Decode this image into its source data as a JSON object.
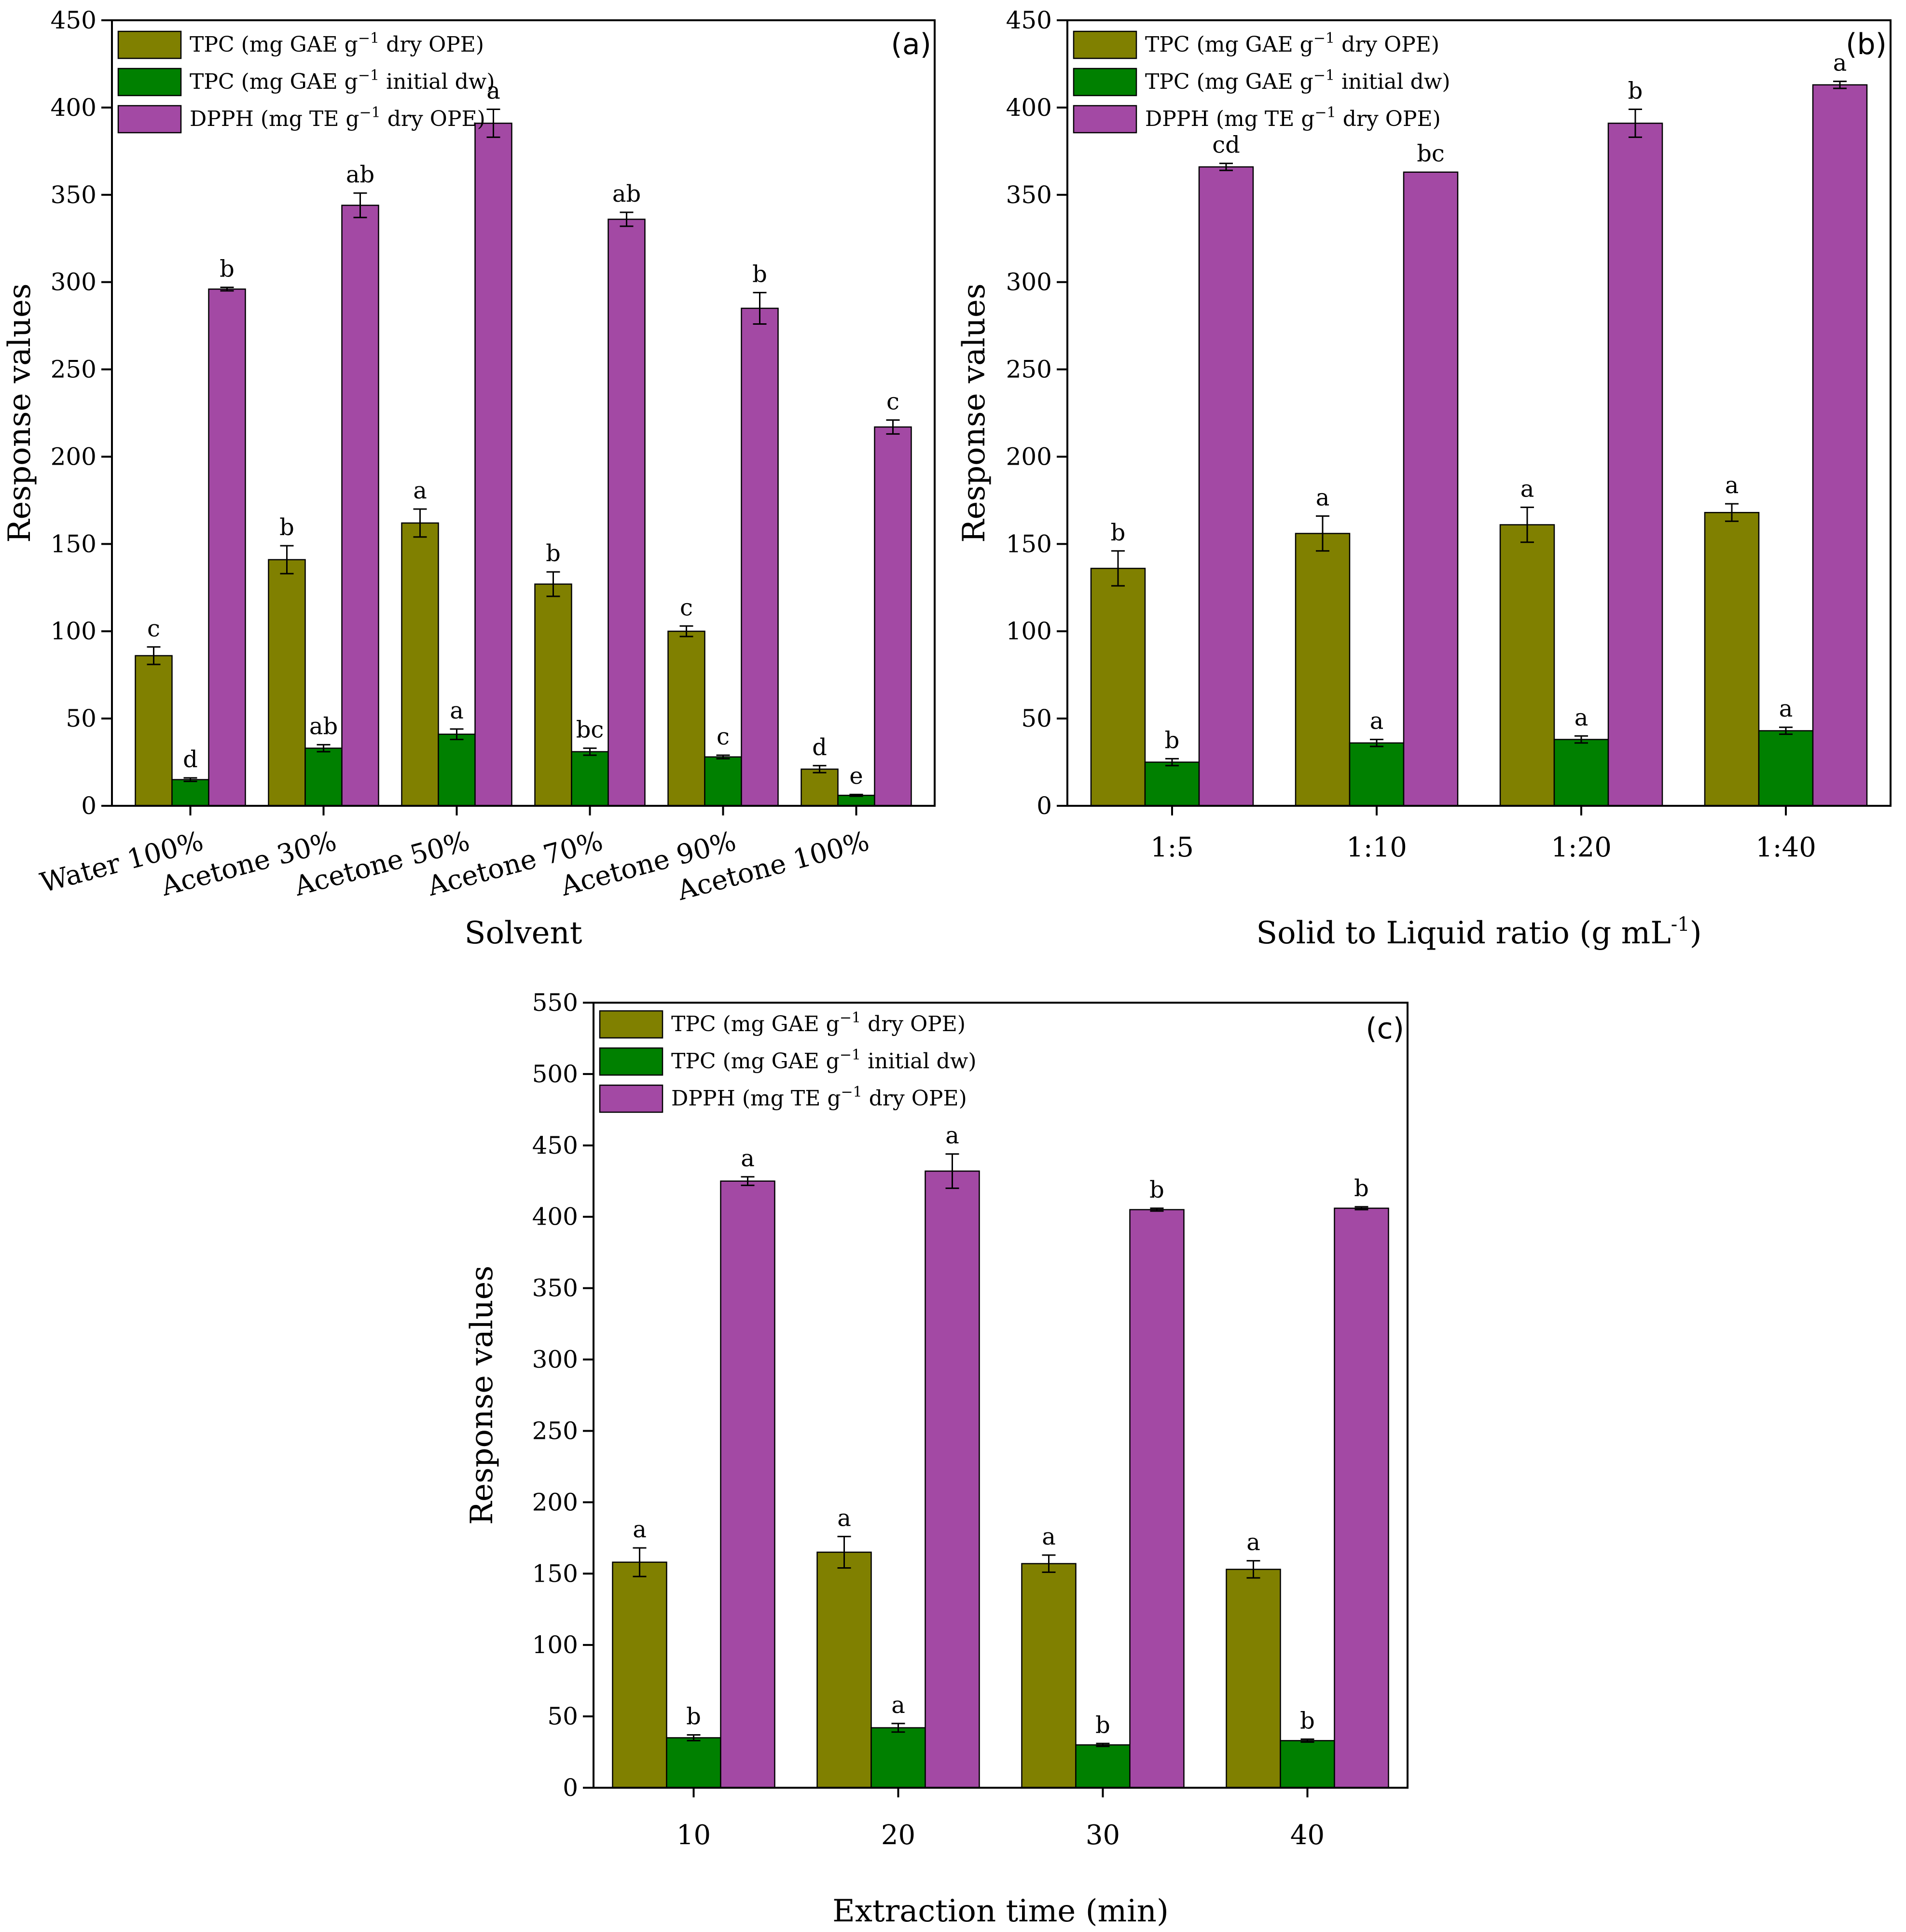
{
  "colors": {
    "tpc_dry": "#808000",
    "tpc_initial": "#008000",
    "dpph": "#A349A4"
  },
  "chart_data": [
    {
      "type": "bar",
      "panel_label": "(a)",
      "xlabel": "Solvent",
      "xlabel_sup": "",
      "xlabel_tail": "",
      "ylabel": "Response values",
      "ylim": [
        0,
        450
      ],
      "yticks": [
        0,
        50,
        100,
        150,
        200,
        250,
        300,
        350,
        400,
        450
      ],
      "categories": [
        "Water 100%",
        "Acetone 30%",
        "Acetone 50%",
        "Acetone 70%",
        "Acetone 90%",
        "Acetone 100%"
      ],
      "legend_position": "top-left",
      "series": [
        {
          "legend_main": "TPC (mg GAE g",
          "legend_sup": "−1",
          "legend_tail": " dry OPE)",
          "color": "#808000",
          "values": [
            86,
            141,
            162,
            127,
            100,
            21
          ],
          "errors": [
            5,
            8,
            8,
            7,
            3,
            2
          ],
          "letters": [
            "c",
            "b",
            "a",
            "b",
            "c",
            "d"
          ]
        },
        {
          "legend_main": "TPC (mg GAE g",
          "legend_sup": "−1",
          "legend_tail": " initial dw)",
          "color": "#008000",
          "values": [
            15,
            33,
            41,
            31,
            28,
            6
          ],
          "errors": [
            1,
            2,
            3,
            2,
            1,
            0.5
          ],
          "letters": [
            "d",
            "ab",
            "a",
            "bc",
            "c",
            "e"
          ]
        },
        {
          "legend_main": "DPPH (mg TE g",
          "legend_sup": "−1",
          "legend_tail": " dry OPE)",
          "color": "#A349A4",
          "values": [
            296,
            344,
            391,
            336,
            285,
            217
          ],
          "errors": [
            1,
            7,
            8,
            4,
            9,
            4
          ],
          "letters": [
            "b",
            "ab",
            "a",
            "ab",
            "b",
            "c"
          ]
        }
      ]
    },
    {
      "type": "bar",
      "panel_label": "(b)",
      "xlabel": "Solid to Liquid ratio (g mL",
      "xlabel_sup": "-1",
      "xlabel_tail": ")",
      "ylabel": "Response values",
      "ylim": [
        0,
        450
      ],
      "yticks": [
        0,
        50,
        100,
        150,
        200,
        250,
        300,
        350,
        400,
        450
      ],
      "categories": [
        "1:5",
        "1:10",
        "1:20",
        "1:40"
      ],
      "legend_position": "top-left",
      "series": [
        {
          "legend_main": "TPC (mg GAE g",
          "legend_sup": "−1",
          "legend_tail": " dry OPE)",
          "color": "#808000",
          "values": [
            136,
            156,
            161,
            168
          ],
          "errors": [
            10,
            10,
            10,
            5
          ],
          "letters": [
            "b",
            "a",
            "a",
            "a"
          ]
        },
        {
          "legend_main": "TPC (mg GAE g",
          "legend_sup": "−1",
          "legend_tail": " initial dw)",
          "color": "#008000",
          "values": [
            25,
            36,
            38,
            43
          ],
          "errors": [
            2,
            2,
            2,
            2
          ],
          "letters": [
            "b",
            "a",
            "a",
            "a"
          ]
        },
        {
          "legend_main": "DPPH (mg TE g",
          "legend_sup": "−1",
          "legend_tail": " dry OPE)",
          "color": "#A349A4",
          "values": [
            366,
            363,
            391,
            413
          ],
          "errors": [
            2,
            0,
            8,
            2
          ],
          "letters": [
            "cd",
            "bc",
            "b",
            "a"
          ]
        }
      ]
    },
    {
      "type": "bar",
      "panel_label": "(c)",
      "xlabel": "Extraction time (min)",
      "xlabel_sup": "",
      "xlabel_tail": "",
      "ylabel": "Response values",
      "ylim": [
        0,
        550
      ],
      "yticks": [
        0,
        50,
        100,
        150,
        200,
        250,
        300,
        350,
        400,
        450,
        500,
        550
      ],
      "categories": [
        "10",
        "20",
        "30",
        "40"
      ],
      "legend_position": "top-left",
      "series": [
        {
          "legend_main": "TPC (mg GAE g",
          "legend_sup": "−1",
          "legend_tail": " dry OPE)",
          "color": "#808000",
          "values": [
            158,
            165,
            157,
            153
          ],
          "errors": [
            10,
            11,
            6,
            6
          ],
          "letters": [
            "a",
            "a",
            "a",
            "a"
          ]
        },
        {
          "legend_main": "TPC (mg GAE g",
          "legend_sup": "−1",
          "legend_tail": " initial dw)",
          "color": "#008000",
          "values": [
            35,
            42,
            30,
            33
          ],
          "errors": [
            2,
            3,
            1,
            1
          ],
          "letters": [
            "b",
            "a",
            "b",
            "b"
          ]
        },
        {
          "legend_main": "DPPH (mg TE g",
          "legend_sup": "−1",
          "legend_tail": " dry OPE)",
          "color": "#A349A4",
          "values": [
            425,
            432,
            405,
            406
          ],
          "errors": [
            3,
            12,
            1,
            1
          ],
          "letters": [
            "a",
            "a",
            "b",
            "b"
          ]
        }
      ]
    }
  ]
}
